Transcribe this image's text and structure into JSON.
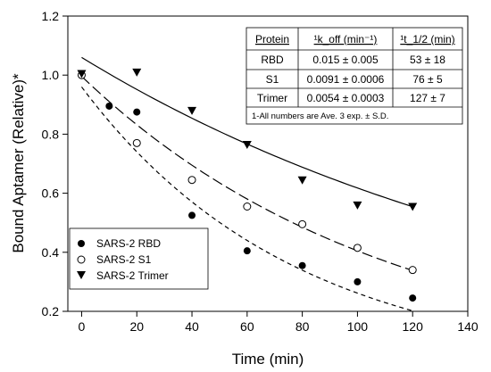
{
  "chart_data": {
    "type": "scatter",
    "xlabel": "Time (min)",
    "ylabel": "Bound Aptamer (Relative)*",
    "xlim": [
      -5,
      140
    ],
    "ylim": [
      0.2,
      1.2
    ],
    "xticks": [
      "0",
      "20",
      "40",
      "60",
      "80",
      "100",
      "120",
      "140"
    ],
    "yticks": [
      "0.2",
      "0.4",
      "0.6",
      "0.8",
      "1.0",
      "1.2"
    ],
    "legend_position": "bottom-left",
    "series": [
      {
        "name": "SARS-2 RBD",
        "marker": "filled-circle",
        "line_style": "short-dash",
        "points": [
          [
            0,
            1.0
          ],
          [
            10,
            0.895
          ],
          [
            20,
            0.875
          ],
          [
            40,
            0.525
          ],
          [
            60,
            0.405
          ],
          [
            80,
            0.355
          ],
          [
            100,
            0.3
          ],
          [
            120,
            0.245
          ]
        ],
        "fit": {
          "a": 0.96,
          "k": 0.013,
          "c": 0.0
        }
      },
      {
        "name": "SARS-2 S1",
        "marker": "open-circle",
        "line_style": "long-dash",
        "points": [
          [
            0,
            1.0
          ],
          [
            20,
            0.77
          ],
          [
            40,
            0.645
          ],
          [
            60,
            0.555
          ],
          [
            80,
            0.495
          ],
          [
            100,
            0.415
          ],
          [
            120,
            0.34
          ]
        ],
        "fit": {
          "a": 0.996,
          "k": 0.009,
          "c": 0.0
        }
      },
      {
        "name": "SARS-2 Trimer",
        "marker": "filled-triangle-down",
        "line_style": "solid",
        "points": [
          [
            0,
            1.005
          ],
          [
            20,
            1.01
          ],
          [
            40,
            0.88
          ],
          [
            60,
            0.765
          ],
          [
            80,
            0.645
          ],
          [
            100,
            0.56
          ],
          [
            120,
            0.555
          ]
        ],
        "fit": {
          "a": 1.06,
          "k": 0.0054,
          "c": 0.0
        }
      }
    ],
    "table": {
      "headers": [
        "Protein",
        "¹k_off (min⁻¹)",
        "¹t_1/2 (min)"
      ],
      "rows": [
        [
          "RBD",
          "0.015 ± 0.005",
          "53 ± 18"
        ],
        [
          "S1",
          "0.0091 ± 0.0006",
          "76 ± 5"
        ],
        [
          "Trimer",
          "0.0054 ± 0.0003",
          "127 ± 7"
        ]
      ],
      "footnote": "1-All numbers are Ave. 3 exp. ± S.D."
    }
  }
}
